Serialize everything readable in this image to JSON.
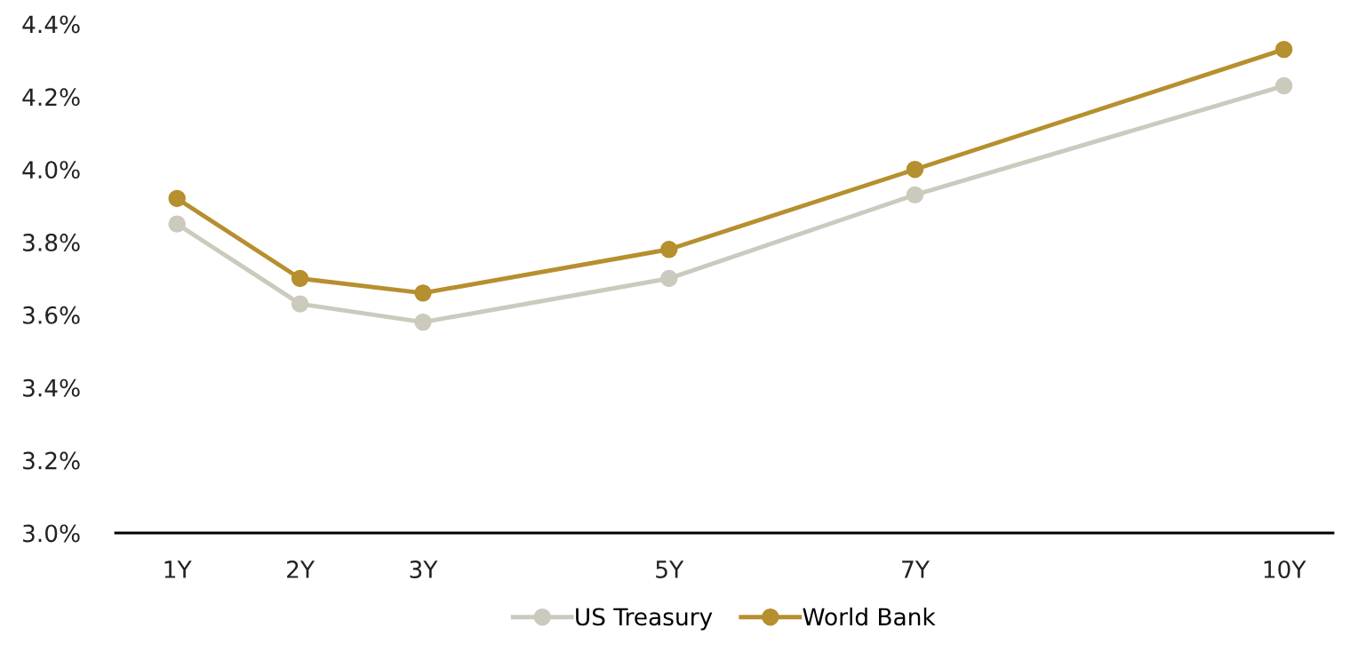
{
  "chart_data": {
    "type": "line",
    "x": [
      1,
      2,
      3,
      5,
      7,
      10
    ],
    "xticks": [
      {
        "value": 1,
        "label": "1Y"
      },
      {
        "value": 2,
        "label": "2Y"
      },
      {
        "value": 3,
        "label": "3Y"
      },
      {
        "value": 5,
        "label": "5Y"
      },
      {
        "value": 7,
        "label": "7Y"
      },
      {
        "value": 10,
        "label": "10Y"
      }
    ],
    "xlim": [
      0.5,
      10.4
    ],
    "ylim": [
      3.0,
      4.4
    ],
    "yticks": [
      {
        "value": 3.0,
        "label": "3.0%"
      },
      {
        "value": 3.2,
        "label": "3.2%"
      },
      {
        "value": 3.4,
        "label": "3.4%"
      },
      {
        "value": 3.6,
        "label": "3.6%"
      },
      {
        "value": 3.8,
        "label": "3.8%"
      },
      {
        "value": 4.0,
        "label": "4.0%"
      },
      {
        "value": 4.2,
        "label": "4.2%"
      },
      {
        "value": 4.4,
        "label": "4.4%"
      }
    ],
    "series": [
      {
        "name": "US Treasury",
        "color": "#cbcabd",
        "values": [
          3.85,
          3.63,
          3.58,
          3.7,
          3.93,
          4.23
        ]
      },
      {
        "name": "World Bank",
        "color": "#b68f2e",
        "values": [
          3.92,
          3.7,
          3.66,
          3.78,
          4.0,
          4.33
        ]
      }
    ],
    "marker": "circle",
    "line_style": "solid",
    "grid": false,
    "legend": "bottom"
  }
}
